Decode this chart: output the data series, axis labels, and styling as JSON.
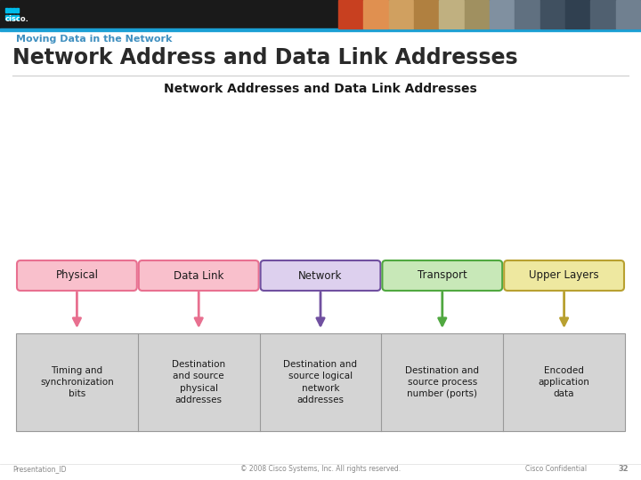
{
  "slide_title_small": "Moving Data in the Network",
  "slide_title_large": "Network Address and Data Link Addresses",
  "diagram_title": "Network Addresses and Data Link Addresses",
  "footer_left": "Presentation_ID",
  "footer_center": "© 2008 Cisco Systems, Inc. All rights reserved.",
  "footer_right": "Cisco Confidential",
  "footer_page": "32",
  "background_color": "#ffffff",
  "header_bg": "#1a1a1a",
  "header_stripe_color": "#1a9fd4",
  "boxes": [
    {
      "label": "Physical",
      "box_color": "#f9c0cc",
      "border_color": "#e87090",
      "arrow_color": "#e87090",
      "desc": "Timing and\nsynchronization\nbits"
    },
    {
      "label": "Data Link",
      "box_color": "#f9c0cc",
      "border_color": "#e87090",
      "arrow_color": "#e87090",
      "desc": "Destination\nand source\nphysical\naddresses"
    },
    {
      "label": "Network",
      "box_color": "#ddd0ee",
      "border_color": "#7050a0",
      "arrow_color": "#7050a0",
      "desc": "Destination and\nsource logical\nnetwork\naddresses"
    },
    {
      "label": "Transport",
      "box_color": "#c8e8b8",
      "border_color": "#50a840",
      "arrow_color": "#50a840",
      "desc": "Destination and\nsource process\nnumber (ports)"
    },
    {
      "label": "Upper Layers",
      "box_color": "#eee8a0",
      "border_color": "#b8a030",
      "arrow_color": "#b8a030",
      "desc": "Encoded\napplication\ndata"
    }
  ],
  "bottom_bar_color": "#d4d4d4",
  "bottom_bar_border": "#999999",
  "title_small_color": "#4090c0",
  "title_large_color": "#2a2a2a"
}
